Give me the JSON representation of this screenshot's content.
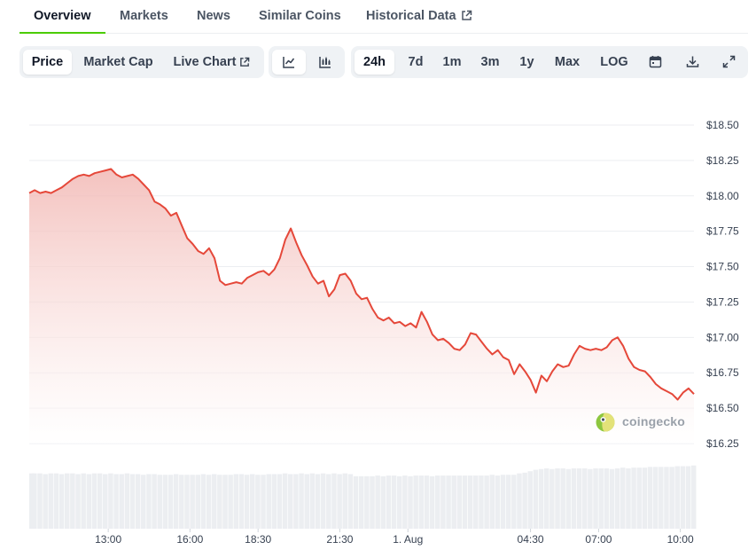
{
  "tabs": [
    {
      "label": "Overview",
      "active": true
    },
    {
      "label": "Markets"
    },
    {
      "label": "News"
    },
    {
      "label": "Similar Coins"
    },
    {
      "label": "Historical Data",
      "external": true
    }
  ],
  "toolbar": {
    "metric": [
      {
        "label": "Price",
        "active": true
      },
      {
        "label": "Market Cap"
      },
      {
        "label": "Live Chart",
        "external": true
      }
    ],
    "chart_type": [
      {
        "icon": "line-chart-icon",
        "active": true
      },
      {
        "icon": "candlestick-chart-icon"
      }
    ],
    "ranges": [
      {
        "label": "24h",
        "active": true
      },
      {
        "label": "7d"
      },
      {
        "label": "1m"
      },
      {
        "label": "3m"
      },
      {
        "label": "1y"
      },
      {
        "label": "Max"
      },
      {
        "label": "LOG"
      }
    ],
    "actions": [
      {
        "icon": "calendar-icon"
      },
      {
        "icon": "download-icon"
      },
      {
        "icon": "fullscreen-icon"
      }
    ]
  },
  "watermark": "coingecko",
  "colors": {
    "line": "#e5483a",
    "area_top": "#f2b8b4",
    "active_tab_underline": "#4bcc00",
    "grid": "#eceef1",
    "volume": "#eceef1"
  },
  "chart_data": {
    "type": "area",
    "title": "",
    "xlabel": "",
    "ylabel": "",
    "y_ticks": [
      "$18.50",
      "$18.25",
      "$18.00",
      "$17.75",
      "$17.50",
      "$17.25",
      "$17.00",
      "$16.75",
      "$16.50",
      "$16.25"
    ],
    "ylim": [
      16.25,
      18.5
    ],
    "x_ticks": [
      "13:00",
      "16:00",
      "18:30",
      "21:30",
      "1. Aug",
      "04:30",
      "07:00",
      "10:00"
    ],
    "x_tick_hours": [
      13.0,
      16.0,
      18.5,
      21.5,
      24.0,
      28.5,
      31.0,
      34.0
    ],
    "grid": true,
    "legend": "none",
    "series": [
      {
        "x": [
          10.1,
          10.3,
          10.5,
          10.7,
          10.9,
          11.1,
          11.3,
          11.5,
          11.7,
          11.9,
          12.1,
          12.3,
          12.5,
          12.7,
          12.9,
          13.1,
          13.3,
          13.5,
          13.7,
          13.9,
          14.1,
          14.3,
          14.5,
          14.7,
          14.9,
          15.1,
          15.3,
          15.5,
          15.7,
          15.9,
          16.1,
          16.3,
          16.5,
          16.7,
          16.9,
          17.1,
          17.3,
          17.5,
          17.7,
          17.9,
          18.1,
          18.3,
          18.5,
          18.7,
          18.9,
          19.1,
          19.3,
          19.5,
          19.7,
          19.9,
          20.1,
          20.3,
          20.5,
          20.7,
          20.9,
          21.1,
          21.3,
          21.5,
          21.7,
          21.9,
          22.1,
          22.3,
          22.5,
          22.7,
          22.9,
          23.1,
          23.3,
          23.5,
          23.7,
          23.9,
          24.1,
          24.3,
          24.5,
          24.7,
          24.9,
          25.1,
          25.3,
          25.5,
          25.7,
          25.9,
          26.1,
          26.3,
          26.5,
          26.7,
          26.9,
          27.1,
          27.3,
          27.5,
          27.7,
          27.9,
          28.1,
          28.3,
          28.5,
          28.7,
          28.9,
          29.1,
          29.3,
          29.5,
          29.7,
          29.9,
          30.1,
          30.3,
          30.5,
          30.7,
          30.9,
          31.1,
          31.3,
          31.5,
          31.7,
          31.9,
          32.1,
          32.3,
          32.5,
          32.7,
          32.9,
          33.1,
          33.3,
          33.5,
          33.7,
          33.9,
          34.1,
          34.3,
          34.5
        ],
        "y": [
          18.02,
          18.04,
          18.02,
          18.03,
          18.02,
          18.04,
          18.06,
          18.09,
          18.12,
          18.14,
          18.15,
          18.14,
          18.16,
          18.17,
          18.18,
          18.19,
          18.15,
          18.13,
          18.14,
          18.15,
          18.12,
          18.08,
          18.04,
          17.96,
          17.94,
          17.91,
          17.86,
          17.88,
          17.79,
          17.7,
          17.66,
          17.61,
          17.59,
          17.63,
          17.56,
          17.4,
          17.37,
          17.38,
          17.39,
          17.38,
          17.42,
          17.44,
          17.46,
          17.47,
          17.44,
          17.48,
          17.56,
          17.69,
          17.77,
          17.67,
          17.58,
          17.51,
          17.43,
          17.38,
          17.4,
          17.29,
          17.34,
          17.44,
          17.45,
          17.4,
          17.31,
          17.27,
          17.28,
          17.2,
          17.14,
          17.12,
          17.14,
          17.1,
          17.11,
          17.08,
          17.1,
          17.07,
          17.18,
          17.11,
          17.02,
          16.98,
          16.99,
          16.96,
          16.92,
          16.91,
          16.95,
          17.03,
          17.02,
          16.97,
          16.92,
          16.88,
          16.91,
          16.86,
          16.84,
          16.74,
          16.81,
          16.76,
          16.7,
          16.61,
          16.73,
          16.69,
          16.76,
          16.81,
          16.79,
          16.8,
          16.88,
          16.94,
          16.92,
          16.91,
          16.92,
          16.91,
          16.93,
          16.98,
          17.0,
          16.94,
          16.85,
          16.79,
          16.77,
          16.76,
          16.72,
          16.67,
          16.64,
          16.62,
          16.6,
          16.56,
          16.61,
          16.64,
          16.6
        ]
      }
    ],
    "volume": {
      "x": [
        10.1,
        10.3,
        10.5,
        10.7,
        10.9,
        11.1,
        11.3,
        11.5,
        11.7,
        11.9,
        12.1,
        12.3,
        12.5,
        12.7,
        12.9,
        13.1,
        13.3,
        13.5,
        13.7,
        13.9,
        14.1,
        14.3,
        14.5,
        14.7,
        14.9,
        15.1,
        15.3,
        15.5,
        15.7,
        15.9,
        16.1,
        16.3,
        16.5,
        16.7,
        16.9,
        17.1,
        17.3,
        17.5,
        17.7,
        17.9,
        18.1,
        18.3,
        18.5,
        18.7,
        18.9,
        19.1,
        19.3,
        19.5,
        19.7,
        19.9,
        20.1,
        20.3,
        20.5,
        20.7,
        20.9,
        21.1,
        21.3,
        21.5,
        21.7,
        21.9,
        22.1,
        22.3,
        22.5,
        22.7,
        22.9,
        23.1,
        23.3,
        23.5,
        23.7,
        23.9,
        24.1,
        24.3,
        24.5,
        24.7,
        24.9,
        25.1,
        25.3,
        25.5,
        25.7,
        25.9,
        26.1,
        26.3,
        26.5,
        26.7,
        26.9,
        27.1,
        27.3,
        27.5,
        27.7,
        27.9,
        28.1,
        28.3,
        28.5,
        28.7,
        28.9,
        29.1,
        29.3,
        29.5,
        29.7,
        29.9,
        30.1,
        30.3,
        30.5,
        30.7,
        30.9,
        31.1,
        31.3,
        31.5,
        31.7,
        31.9,
        32.1,
        32.3,
        32.5,
        32.7,
        32.9,
        33.1,
        33.3,
        33.5,
        33.7,
        33.9,
        34.1,
        34.3,
        34.5
      ],
      "values": [
        0.77,
        0.77,
        0.77,
        0.76,
        0.77,
        0.77,
        0.76,
        0.77,
        0.77,
        0.76,
        0.77,
        0.76,
        0.77,
        0.77,
        0.76,
        0.77,
        0.76,
        0.76,
        0.77,
        0.76,
        0.76,
        0.75,
        0.76,
        0.76,
        0.75,
        0.75,
        0.75,
        0.76,
        0.75,
        0.75,
        0.75,
        0.75,
        0.76,
        0.75,
        0.76,
        0.75,
        0.75,
        0.75,
        0.76,
        0.76,
        0.75,
        0.76,
        0.75,
        0.75,
        0.76,
        0.76,
        0.76,
        0.77,
        0.76,
        0.76,
        0.77,
        0.76,
        0.77,
        0.76,
        0.77,
        0.76,
        0.77,
        0.76,
        0.77,
        0.76,
        0.73,
        0.73,
        0.73,
        0.73,
        0.74,
        0.73,
        0.74,
        0.74,
        0.73,
        0.74,
        0.73,
        0.74,
        0.74,
        0.74,
        0.73,
        0.74,
        0.74,
        0.74,
        0.74,
        0.74,
        0.74,
        0.74,
        0.74,
        0.74,
        0.74,
        0.75,
        0.74,
        0.75,
        0.75,
        0.75,
        0.77,
        0.78,
        0.8,
        0.82,
        0.83,
        0.84,
        0.83,
        0.84,
        0.84,
        0.83,
        0.84,
        0.84,
        0.84,
        0.83,
        0.84,
        0.84,
        0.84,
        0.83,
        0.84,
        0.85,
        0.84,
        0.85,
        0.85,
        0.85,
        0.86,
        0.86,
        0.86,
        0.86,
        0.86,
        0.87,
        0.87,
        0.87,
        0.88
      ]
    }
  }
}
